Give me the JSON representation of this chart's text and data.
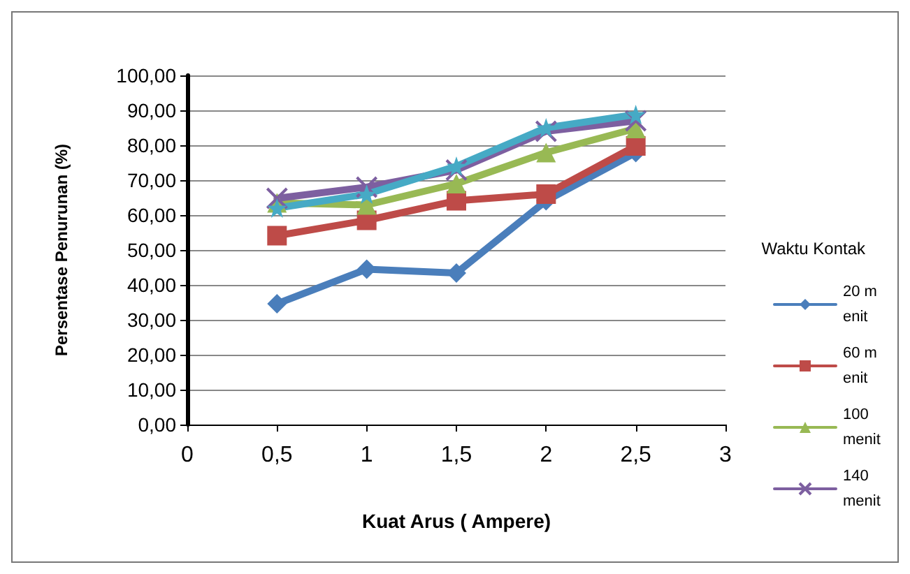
{
  "chart_data": {
    "type": "line",
    "xlabel": "Kuat Arus ( Ampere)",
    "ylabel": "Persentase Penurunan (%)",
    "legend_title": "Waktu Kontak",
    "x": [
      0.5,
      1,
      1.5,
      2,
      2.5
    ],
    "series": [
      {
        "name": "20 menit",
        "color": "#4a7ebb",
        "marker": "diamond",
        "values": [
          34.6,
          44.5,
          43.4,
          64.1,
          77.9
        ]
      },
      {
        "name": "60 menit",
        "color": "#be4b48",
        "marker": "square",
        "values": [
          54.1,
          58.5,
          64.1,
          66,
          79.8
        ]
      },
      {
        "name": "100 menit",
        "color": "#98b954",
        "marker": "triangle",
        "values": [
          63.5,
          62.9,
          69,
          77.9,
          84.8
        ]
      },
      {
        "name": "140 menit",
        "color": "#7d5fa0",
        "marker": "cross",
        "values": [
          64.8,
          68,
          72.9,
          84,
          87
        ]
      },
      {
        "color": "#46aac5",
        "marker": "star",
        "values": [
          62,
          66,
          74,
          85,
          88.8
        ]
      }
    ],
    "xlim": [
      0,
      3
    ],
    "xticks": [
      0,
      {
        "value": 0.5,
        "label": "0,5"
      },
      1,
      {
        "value": 1.5,
        "label": "1,5"
      },
      2,
      {
        "value": 2.5,
        "label": "2,5"
      },
      3
    ],
    "ylim": [
      0,
      100
    ],
    "yticks": [
      {
        "value": 0,
        "label": "0,00"
      },
      {
        "value": 10,
        "label": "10,00"
      },
      {
        "value": 20,
        "label": "20,00"
      },
      {
        "value": 30,
        "label": "30,00"
      },
      {
        "value": 40,
        "label": "40,00"
      },
      {
        "value": 50,
        "label": "50,00"
      },
      {
        "value": 60,
        "label": "60,00"
      },
      {
        "value": 70,
        "label": "70,00"
      },
      {
        "value": 80,
        "label": "80,00"
      },
      {
        "value": 90,
        "label": "90,00"
      },
      {
        "value": 100,
        "label": "100,00"
      }
    ],
    "grid": "y",
    "legend": "right",
    "line_style": "solid"
  }
}
